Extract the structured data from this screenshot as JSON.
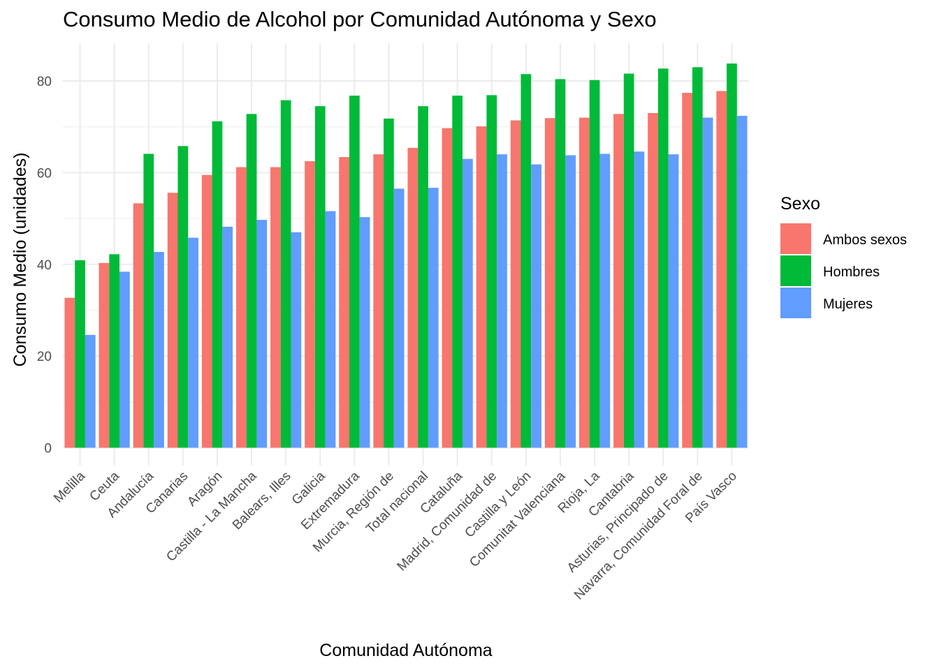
{
  "chart_data": {
    "type": "bar",
    "title": "Consumo Medio de Alcohol por Comunidad Autónoma y Sexo",
    "xlabel": "Comunidad Autónoma",
    "ylabel": "Consumo Medio (unidades)",
    "ylim": [
      0,
      88
    ],
    "yticks": [
      0,
      20,
      40,
      60,
      80
    ],
    "grid": true,
    "legend": {
      "title": "Sexo",
      "position": "right"
    },
    "categories": [
      "Melilla",
      "Ceuta",
      "Andalucía",
      "Canarias",
      "Aragón",
      "Castilla - La Mancha",
      "Balears, Illes",
      "Galicia",
      "Extremadura",
      "Murcia, Región de",
      "Total nacional",
      "Cataluña",
      "Madrid, Comunidad de",
      "Castilla y León",
      "Comunitat Valenciana",
      "Rioja, La",
      "Cantabria",
      "Asturias, Principado de",
      "Navarra, Comunidad Foral de",
      "País Vasco"
    ],
    "series": [
      {
        "name": "Ambos sexos",
        "color": "#F8766D",
        "values": [
          32.7,
          40.3,
          53.3,
          55.6,
          59.5,
          61.2,
          61.2,
          62.5,
          63.4,
          64.0,
          65.4,
          69.7,
          70.1,
          71.4,
          71.9,
          72.0,
          72.8,
          73.0,
          77.4,
          77.8
        ]
      },
      {
        "name": "Hombres",
        "color": "#00BA38",
        "values": [
          40.9,
          42.2,
          64.1,
          65.8,
          71.2,
          72.8,
          75.8,
          74.5,
          76.8,
          71.8,
          74.5,
          76.8,
          76.9,
          81.5,
          80.4,
          80.2,
          81.6,
          82.7,
          83.0,
          83.8
        ]
      },
      {
        "name": "Mujeres",
        "color": "#619CFF",
        "values": [
          24.6,
          38.4,
          42.7,
          45.8,
          48.2,
          49.7,
          47.0,
          51.6,
          50.3,
          56.5,
          56.7,
          63.0,
          64.0,
          61.8,
          63.8,
          64.1,
          64.6,
          64.0,
          72.0,
          72.4
        ]
      }
    ]
  }
}
